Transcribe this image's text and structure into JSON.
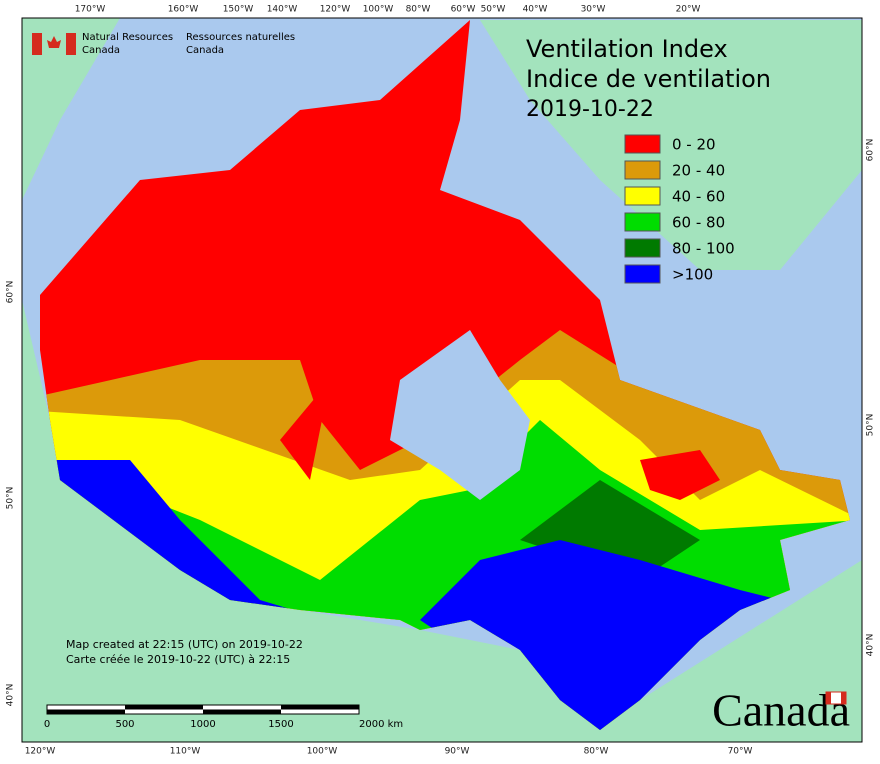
{
  "header": {
    "agency_en": [
      "Natural Resources",
      "Canada"
    ],
    "agency_fr": [
      "Ressources naturelles",
      "Canada"
    ]
  },
  "title": [
    "Ventilation Index",
    "Indice de ventilation",
    "2019-10-22"
  ],
  "legend": [
    {
      "label": "0 - 20",
      "color": "#ff0000"
    },
    {
      "label": "20 - 40",
      "color": "#dc9a0a"
    },
    {
      "label": "40 - 60",
      "color": "#ffff00"
    },
    {
      "label": "60 - 80",
      "color": "#00dd00"
    },
    {
      "label": "80 - 100",
      "color": "#007a00"
    },
    {
      "label": ">100",
      "color": "#0000ff"
    }
  ],
  "top_longitudes": [
    "170°W",
    "160°W",
    "150°W",
    "140°W",
    "120°W",
    "100°W",
    "80°W",
    "60°W",
    "50°W",
    "40°W",
    "30°W",
    "20°W"
  ],
  "bottom_longitudes": [
    "120°W",
    "110°W",
    "100°W",
    "90°W",
    "80°W",
    "70°W"
  ],
  "left_latitudes": [
    "60°N",
    "50°N",
    "40°N"
  ],
  "right_latitudes": [
    "60°N",
    "50°N",
    "40°N"
  ],
  "footer": [
    "Map created at 22:15 (UTC) on 2019-10-22",
    "Carte créée le 2019-10-22 (UTC) à 22:15"
  ],
  "scale_bar": [
    "0",
    "500",
    "1000",
    "1500",
    "2000 km"
  ],
  "wordmark": "Canada"
}
